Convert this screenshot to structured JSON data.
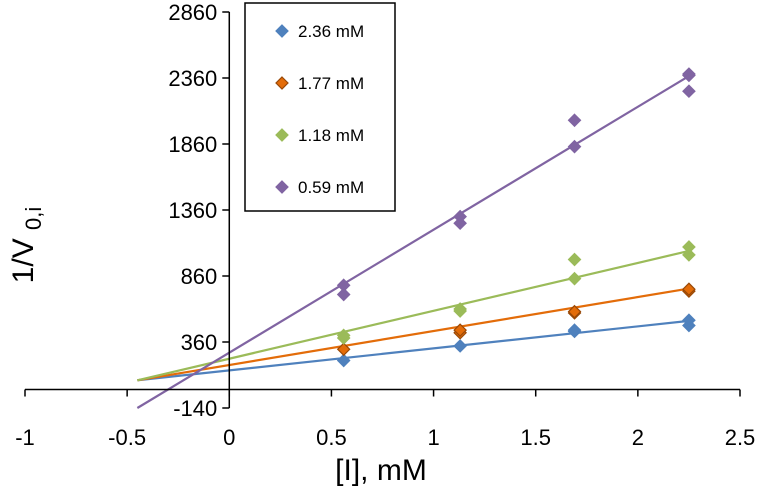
{
  "chart_data": {
    "type": "scatter",
    "title": "",
    "xlabel": "[I], mM",
    "ylabel_main": "1/V",
    "ylabel_sub": "0,i",
    "xlim": [
      -1,
      2.5
    ],
    "ylim": [
      -140,
      2860
    ],
    "x_ticks": [
      -1,
      -0.5,
      0,
      0.5,
      1,
      1.5,
      2,
      2.5
    ],
    "x_tick_labels": [
      "-1",
      "-0.5",
      "0",
      "0.5",
      "1",
      "1.5",
      "2",
      "2.5"
    ],
    "y_ticks": [
      -140,
      360,
      860,
      1360,
      1860,
      2360,
      2860
    ],
    "y_tick_labels": [
      "-140",
      "360",
      "860",
      "1360",
      "1860",
      "2360",
      "2860"
    ],
    "grid": false,
    "legend_position": "top-center",
    "series": [
      {
        "name": "2.36 mM",
        "color": "#4F81BD",
        "marker_edge": "#4F81BD",
        "points": [
          [
            0.56,
            220
          ],
          [
            1.13,
            330
          ],
          [
            1.69,
            440
          ],
          [
            1.69,
            450
          ],
          [
            2.25,
            485
          ],
          [
            2.25,
            525
          ]
        ],
        "fit_x": [
          -0.45,
          2.25
        ],
        "fit_y": [
          70,
          520
        ]
      },
      {
        "name": "1.77 mM",
        "color": "#E36C09",
        "marker_edge": "#984807",
        "points": [
          [
            0.56,
            305
          ],
          [
            1.13,
            430
          ],
          [
            1.13,
            450
          ],
          [
            1.69,
            580
          ],
          [
            1.69,
            590
          ],
          [
            2.25,
            745
          ],
          [
            2.25,
            760
          ]
        ],
        "fit_x": [
          -0.45,
          2.25
        ],
        "fit_y": [
          70,
          765
        ]
      },
      {
        "name": "1.18 mM",
        "color": "#9BBB59",
        "marker_edge": "#9BBB59",
        "points": [
          [
            0.56,
            390
          ],
          [
            0.56,
            410
          ],
          [
            1.13,
            595
          ],
          [
            1.13,
            610
          ],
          [
            1.69,
            840
          ],
          [
            1.69,
            985
          ],
          [
            2.25,
            1020
          ],
          [
            2.25,
            1080
          ]
        ],
        "fit_x": [
          -0.45,
          2.25
        ],
        "fit_y": [
          70,
          1050
        ]
      },
      {
        "name": "0.59 mM",
        "color": "#8064A2",
        "marker_edge": "#8064A2",
        "points": [
          [
            0.56,
            720
          ],
          [
            0.56,
            790
          ],
          [
            1.13,
            1260
          ],
          [
            1.13,
            1310
          ],
          [
            1.69,
            1840
          ],
          [
            1.69,
            2040
          ],
          [
            2.25,
            2260
          ],
          [
            2.25,
            2380
          ],
          [
            2.25,
            2390
          ]
        ],
        "fit_x": [
          -0.45,
          2.25
        ],
        "fit_y": [
          -140,
          2375
        ]
      }
    ]
  }
}
